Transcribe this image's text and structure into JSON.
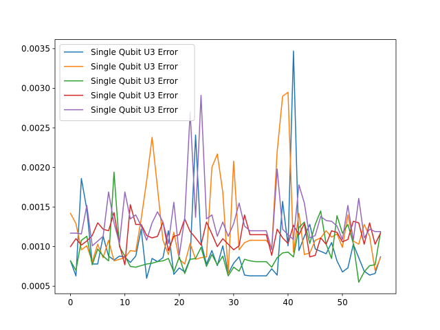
{
  "chart_data": {
    "type": "line",
    "title": "",
    "xlabel": "",
    "ylabel": "",
    "xlim": [
      -2.85,
      59.85
    ],
    "ylim": [
      0.000405,
      0.003615
    ],
    "xticks": [
      0,
      10,
      20,
      30,
      40,
      50
    ],
    "yticks": [
      0.0005,
      0.001,
      0.0015,
      0.002,
      0.0025,
      0.003,
      0.0035
    ],
    "xtick_labels": [
      "0",
      "10",
      "20",
      "30",
      "40",
      "50"
    ],
    "ytick_labels": [
      "0.0005",
      "0.0010",
      "0.0015",
      "0.0020",
      "0.0025",
      "0.0030",
      "0.0035"
    ],
    "grid": false,
    "legend_position": "upper-left",
    "x": [
      0,
      1,
      2,
      3,
      4,
      5,
      6,
      7,
      8,
      9,
      10,
      11,
      12,
      13,
      14,
      15,
      16,
      17,
      18,
      19,
      20,
      21,
      22,
      23,
      24,
      25,
      26,
      27,
      28,
      29,
      30,
      31,
      32,
      33,
      34,
      35,
      36,
      37,
      38,
      39,
      40,
      41,
      42,
      43,
      44,
      45,
      46,
      47,
      48,
      49,
      50,
      51,
      52,
      53,
      54,
      55,
      56,
      57
    ],
    "series": [
      {
        "name": "Single Qubit U3 Error",
        "color": "#1f77b4",
        "values": [
          0.00082,
          0.00063,
          0.00186,
          0.00147,
          0.00078,
          0.00078,
          0.00113,
          0.00088,
          0.00083,
          0.00088,
          0.00087,
          0.0008,
          0.00088,
          0.00122,
          0.0006,
          0.00085,
          0.00081,
          0.00086,
          0.0012,
          0.00065,
          0.00073,
          0.00068,
          0.00085,
          0.00241,
          0.00105,
          0.00078,
          0.00095,
          0.00076,
          0.00101,
          0.00066,
          0.00079,
          0.00087,
          0.00064,
          0.00063,
          0.00063,
          0.00063,
          0.00063,
          0.00072,
          0.00064,
          0.00157,
          0.00101,
          0.00347,
          0.00095,
          0.00113,
          0.00128,
          0.00097,
          0.00094,
          0.00091,
          0.00105,
          0.00082,
          0.00068,
          0.00073,
          0.00103,
          0.00086,
          0.00069,
          0.00064,
          0.00066,
          0.00087
        ]
      },
      {
        "name": "Single Qubit U3 Error",
        "color": "#ff7f0e",
        "values": [
          0.00142,
          0.00129,
          0.00096,
          0.00101,
          0.00081,
          0.00103,
          0.00086,
          0.00108,
          0.00082,
          0.00084,
          0.00086,
          0.00095,
          0.00094,
          0.00135,
          0.00183,
          0.00238,
          0.00174,
          0.00108,
          0.0009,
          0.00118,
          0.00084,
          0.00078,
          0.00104,
          0.00084,
          0.00086,
          0.00087,
          0.002,
          0.00217,
          0.00169,
          0.00066,
          0.00208,
          0.00096,
          0.00105,
          0.00108,
          0.00108,
          0.00108,
          0.00108,
          0.00098,
          0.0022,
          0.0029,
          0.00295,
          0.00093,
          0.00142,
          0.0009,
          0.00092,
          0.00108,
          0.00111,
          0.0012,
          0.00112,
          0.00116,
          0.00099,
          0.0014,
          0.00107,
          0.00103,
          0.00128,
          0.00113,
          0.0007,
          0.00086
        ]
      },
      {
        "name": "Single Qubit U3 Error",
        "color": "#2ca02c",
        "values": [
          0.00082,
          0.0007,
          0.00108,
          0.00113,
          0.00077,
          0.00097,
          0.00088,
          0.00082,
          0.00194,
          0.001,
          0.00088,
          0.00075,
          0.00074,
          0.00076,
          0.00078,
          0.00079,
          0.00081,
          0.00082,
          0.00085,
          0.00068,
          0.00087,
          0.00066,
          0.00084,
          0.00085,
          0.00099,
          0.00075,
          0.0009,
          0.00077,
          0.00088,
          0.00063,
          0.00074,
          0.00069,
          0.00084,
          0.00082,
          0.00081,
          0.00081,
          0.00081,
          0.00074,
          0.00086,
          0.00092,
          0.00093,
          0.00087,
          0.00124,
          0.00131,
          0.00104,
          0.00128,
          0.00145,
          0.00103,
          0.00085,
          0.00139,
          0.00117,
          0.00128,
          0.00104,
          0.00055,
          0.00068,
          0.00076,
          0.00077,
          0.00118
        ]
      },
      {
        "name": "Single Qubit U3 Error",
        "color": "#d62728",
        "values": [
          0.001,
          0.0011,
          0.00102,
          0.00107,
          0.00114,
          0.0013,
          0.00122,
          0.0012,
          0.00143,
          0.00102,
          0.00077,
          0.00153,
          0.00128,
          0.00128,
          0.00114,
          0.00111,
          0.00113,
          0.00131,
          0.00095,
          0.00113,
          0.00115,
          0.00135,
          0.00119,
          0.00111,
          0.00102,
          0.00131,
          0.00116,
          0.001,
          0.0011,
          0.00103,
          0.00096,
          0.00101,
          0.0014,
          0.00115,
          0.00115,
          0.00115,
          0.00115,
          0.00089,
          0.00122,
          0.00111,
          0.00104,
          0.00127,
          0.00115,
          0.00129,
          0.00087,
          0.00089,
          0.00111,
          0.00103,
          0.0012,
          0.00118,
          0.00106,
          0.00109,
          0.00132,
          0.0013,
          0.00103,
          0.0013,
          0.00103,
          0.00117
        ]
      },
      {
        "name": "Single Qubit U3 Error",
        "color": "#9467bd",
        "values": [
          0.00117,
          0.00117,
          0.00116,
          0.00152,
          0.00101,
          0.00107,
          0.00113,
          0.00169,
          0.0013,
          0.00104,
          0.00169,
          0.00135,
          0.0014,
          0.00126,
          0.00108,
          0.0013,
          0.00144,
          0.00131,
          0.00104,
          0.00156,
          0.00089,
          0.00136,
          0.0027,
          0.00137,
          0.00291,
          0.00135,
          0.0014,
          0.00113,
          0.00131,
          0.00113,
          0.00129,
          0.00155,
          0.00126,
          0.0012,
          0.0012,
          0.0012,
          0.0012,
          0.00096,
          0.00198,
          0.00122,
          0.00115,
          0.00109,
          0.00178,
          0.00155,
          0.00111,
          0.00114,
          0.00138,
          0.00133,
          0.00132,
          0.00126,
          0.00109,
          0.00152,
          0.00108,
          0.00161,
          0.00111,
          0.00122,
          0.00119,
          0.00119
        ]
      }
    ]
  }
}
